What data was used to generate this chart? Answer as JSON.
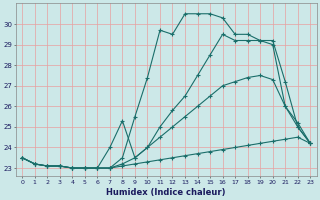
{
  "xlabel": "Humidex (Indice chaleur)",
  "bg_color": "#cce8e8",
  "grid_color": "#e8a0a0",
  "line_color": "#1a6e6a",
  "xlim": [
    -0.5,
    23.5
  ],
  "ylim": [
    22.6,
    31.0
  ],
  "yticks": [
    23,
    24,
    25,
    26,
    27,
    28,
    29,
    30
  ],
  "xticks": [
    0,
    1,
    2,
    3,
    4,
    5,
    6,
    7,
    8,
    9,
    10,
    11,
    12,
    13,
    14,
    15,
    16,
    17,
    18,
    19,
    20,
    21,
    22,
    23
  ],
  "series": [
    {
      "x": [
        0,
        1,
        2,
        3,
        4,
        5,
        6,
        7,
        8,
        9,
        10,
        11,
        12,
        13,
        14,
        15,
        16,
        17,
        18,
        19,
        20,
        21,
        22,
        23
      ],
      "y": [
        23.5,
        23.2,
        23.1,
        23.1,
        23.0,
        23.0,
        23.0,
        23.0,
        23.1,
        23.2,
        23.3,
        23.4,
        23.5,
        23.6,
        23.7,
        23.8,
        23.9,
        24.0,
        24.1,
        24.2,
        24.3,
        24.4,
        24.5,
        24.2
      ]
    },
    {
      "x": [
        0,
        1,
        2,
        3,
        4,
        5,
        6,
        7,
        8,
        9,
        10,
        11,
        12,
        13,
        14,
        15,
        16,
        17,
        18,
        19,
        20,
        21,
        22,
        23
      ],
      "y": [
        23.5,
        23.2,
        23.1,
        23.1,
        23.0,
        23.0,
        23.0,
        23.0,
        23.2,
        23.5,
        24.0,
        24.5,
        25.0,
        25.5,
        26.0,
        26.5,
        27.0,
        27.2,
        27.4,
        27.5,
        27.3,
        26.0,
        25.2,
        24.2
      ]
    },
    {
      "x": [
        0,
        1,
        2,
        3,
        4,
        5,
        6,
        7,
        8,
        9,
        10,
        11,
        12,
        13,
        14,
        15,
        16,
        17,
        18,
        19,
        20,
        21,
        22,
        23
      ],
      "y": [
        23.5,
        23.2,
        23.1,
        23.1,
        23.0,
        23.0,
        23.0,
        24.0,
        25.3,
        23.5,
        24.0,
        25.0,
        25.8,
        26.5,
        27.5,
        28.5,
        29.5,
        29.2,
        29.2,
        29.2,
        29.0,
        26.0,
        25.0,
        24.2
      ]
    },
    {
      "x": [
        0,
        1,
        2,
        3,
        4,
        5,
        6,
        7,
        8,
        9,
        10,
        11,
        12,
        13,
        14,
        15,
        16,
        17,
        18,
        19,
        20,
        21,
        22,
        23
      ],
      "y": [
        23.5,
        23.2,
        23.1,
        23.1,
        23.0,
        23.0,
        23.0,
        23.0,
        23.5,
        25.5,
        27.4,
        29.7,
        29.5,
        30.5,
        30.5,
        30.5,
        30.3,
        29.5,
        29.5,
        29.2,
        29.2,
        27.2,
        25.0,
        24.2
      ]
    }
  ]
}
